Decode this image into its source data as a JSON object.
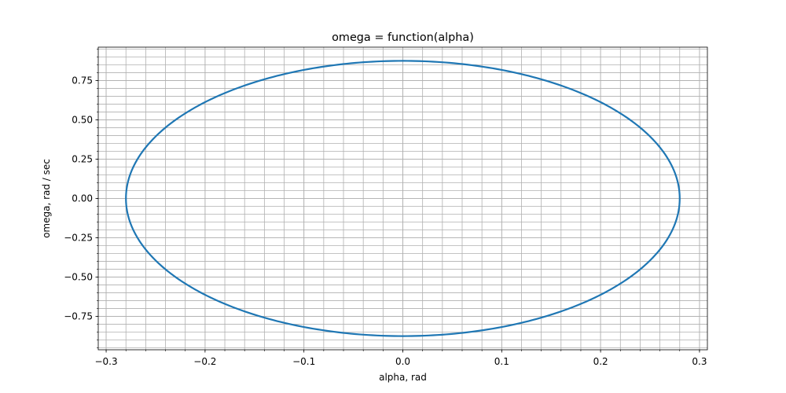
{
  "chart_data": {
    "type": "line",
    "title": "omega = function(alpha)",
    "xlabel": "alpha, rad",
    "ylabel": "omega, rad / sec",
    "xlim": [
      -0.308,
      0.308
    ],
    "ylim": [
      -0.962,
      0.962
    ],
    "xticks": [
      -0.3,
      -0.2,
      -0.1,
      0.0,
      0.1,
      0.2,
      0.3
    ],
    "xtick_labels": [
      "−0.3",
      "−0.2",
      "−0.1",
      "0.0",
      "0.1",
      "0.2",
      "0.3"
    ],
    "yticks": [
      -0.75,
      -0.5,
      -0.25,
      0.0,
      0.25,
      0.5,
      0.75
    ],
    "ytick_labels": [
      "−0.75",
      "−0.50",
      "−0.25",
      "0.00",
      "0.25",
      "0.50",
      "0.75"
    ],
    "x_minor_step": 0.02,
    "y_minor_step": 0.05,
    "grid": true,
    "grid_minor": true,
    "series": [
      {
        "shape": "ellipse",
        "center": [
          0.0,
          0.0
        ],
        "alpha_amplitude": 0.28,
        "omega_amplitude": 0.875,
        "color": "#1f77b4"
      }
    ]
  }
}
